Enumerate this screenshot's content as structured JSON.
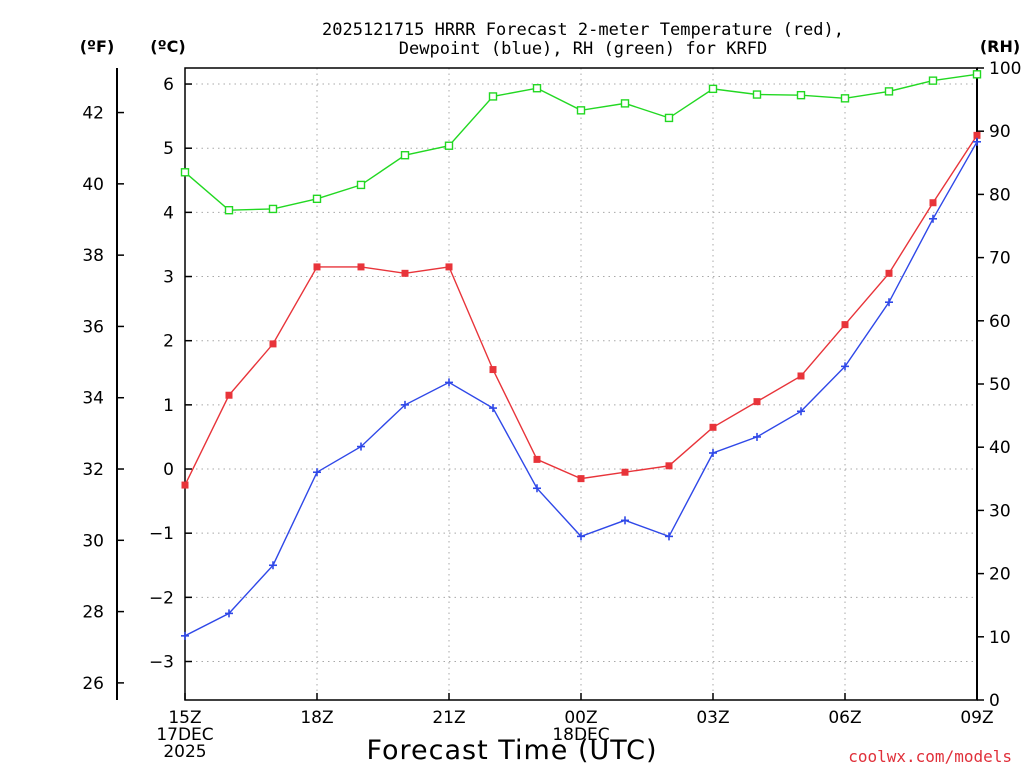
{
  "chart_data": {
    "type": "line",
    "title_lines": [
      "2025121715 HRRR Forecast 2-meter Temperature (red),",
      "Dewpoint (blue), RH (green) for KRFD"
    ],
    "xlabel": "Forecast Time (UTC)",
    "credit": "coolwx.com/models",
    "left_axis_f": {
      "unit": "(ºF)",
      "ticks": [
        "26",
        "28",
        "30",
        "32",
        "34",
        "36",
        "38",
        "40",
        "42"
      ],
      "ylim": [
        25.7,
        43.5
      ]
    },
    "left_axis_c": {
      "unit": "(ºC)",
      "ticks": [
        "−3",
        "−2",
        "−1",
        "0",
        "1",
        "2",
        "3",
        "4",
        "5",
        "6"
      ],
      "ylim": [
        -3.6,
        6.25
      ]
    },
    "right_axis_rh": {
      "unit": "(RH)",
      "ticks": [
        "0",
        "10",
        "20",
        "30",
        "40",
        "50",
        "60",
        "70",
        "80",
        "90",
        "100"
      ],
      "ylim": [
        0,
        100
      ]
    },
    "x_hours": [
      15,
      16,
      17,
      18,
      19,
      20,
      21,
      22,
      23,
      24,
      25,
      26,
      27,
      28,
      29,
      30,
      31,
      32,
      33
    ],
    "x_ticks": [
      {
        "hour": 15,
        "lines": [
          "15Z",
          "17DEC",
          "2025"
        ]
      },
      {
        "hour": 18,
        "lines": [
          "18Z"
        ]
      },
      {
        "hour": 21,
        "lines": [
          "21Z"
        ]
      },
      {
        "hour": 24,
        "lines": [
          "00Z",
          "18DEC"
        ]
      },
      {
        "hour": 27,
        "lines": [
          "03Z"
        ]
      },
      {
        "hour": 30,
        "lines": [
          "06Z"
        ]
      },
      {
        "hour": 33,
        "lines": [
          "09Z"
        ]
      }
    ],
    "series": [
      {
        "name": "Temperature",
        "axis": "C",
        "color": "#e8343a",
        "marker": "filled-square",
        "values": [
          -0.25,
          1.15,
          1.95,
          3.15,
          3.15,
          3.05,
          3.15,
          1.55,
          0.15,
          -0.15,
          -0.05,
          0.05,
          0.65,
          1.05,
          1.45,
          2.25,
          3.05,
          4.15,
          5.2
        ]
      },
      {
        "name": "Dewpoint",
        "axis": "C",
        "color": "#2f48e8",
        "marker": "plus",
        "values": [
          -2.6,
          -2.25,
          -1.5,
          -0.05,
          0.35,
          1.0,
          1.35,
          0.95,
          -0.3,
          -1.05,
          -0.8,
          -1.05,
          0.25,
          0.5,
          0.9,
          1.6,
          2.6,
          3.9,
          5.1
        ]
      },
      {
        "name": "RH",
        "axis": "RH",
        "color": "#22d822",
        "marker": "open-square",
        "values": [
          83.5,
          77.5,
          77.7,
          79.3,
          81.5,
          86.2,
          87.7,
          95.5,
          96.8,
          93.3,
          94.4,
          92.1,
          96.7,
          95.8,
          95.7,
          95.2,
          96.3,
          98.0,
          99.0
        ]
      }
    ]
  }
}
